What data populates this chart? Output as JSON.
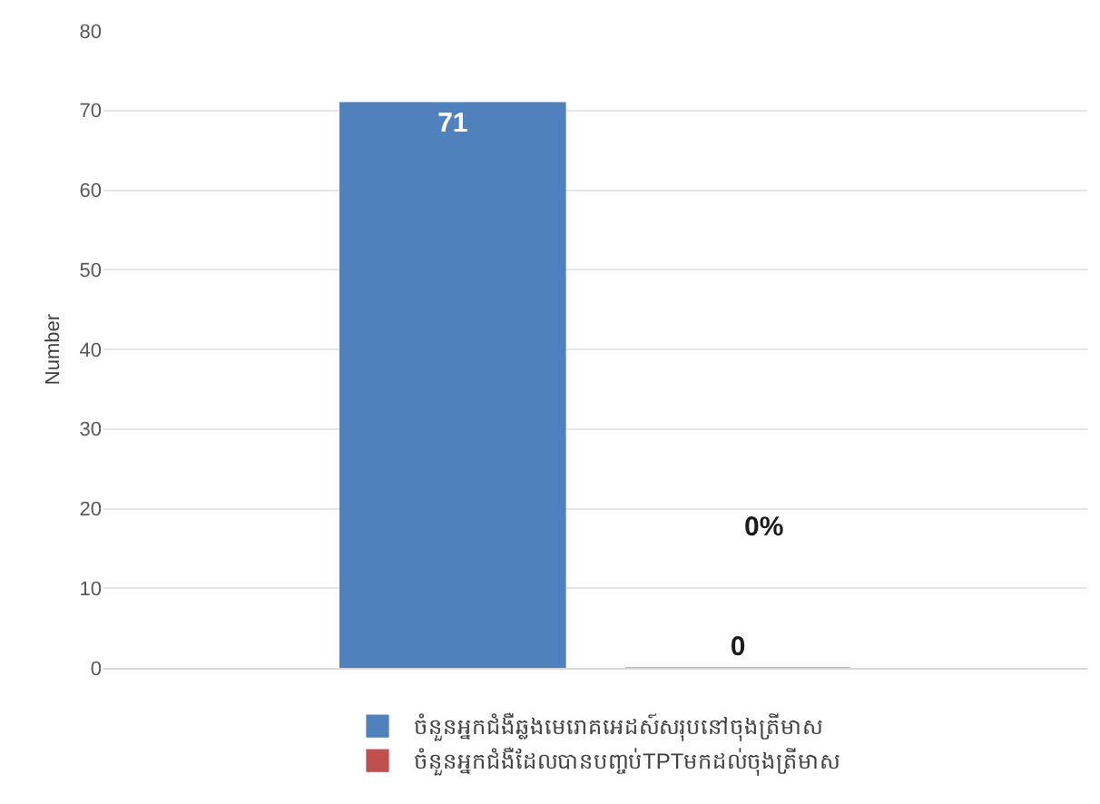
{
  "chart_data": {
    "type": "bar",
    "categories": [
      null
    ],
    "series": [
      {
        "name": "ចំនួនអ្នកជំងឺឆ្លងមេរោគអេដស៍សរុបនៅចុងត្រីមាស",
        "color": "#4f81bd",
        "values": [
          71
        ]
      },
      {
        "name": "ចំនួនអ្នកជំងឺដែលបានបញ្ចប់TPTមកដល់ចុងត្រីមាស",
        "color": "#c0504d",
        "values": [
          0
        ]
      }
    ],
    "ylabel": "Number",
    "ylim": [
      0,
      80
    ],
    "yticks": [
      0,
      10,
      20,
      30,
      40,
      50,
      60,
      70,
      80
    ],
    "grid": "y",
    "legend": "bottom",
    "data_labels": true,
    "annotations": [
      "0%"
    ]
  }
}
